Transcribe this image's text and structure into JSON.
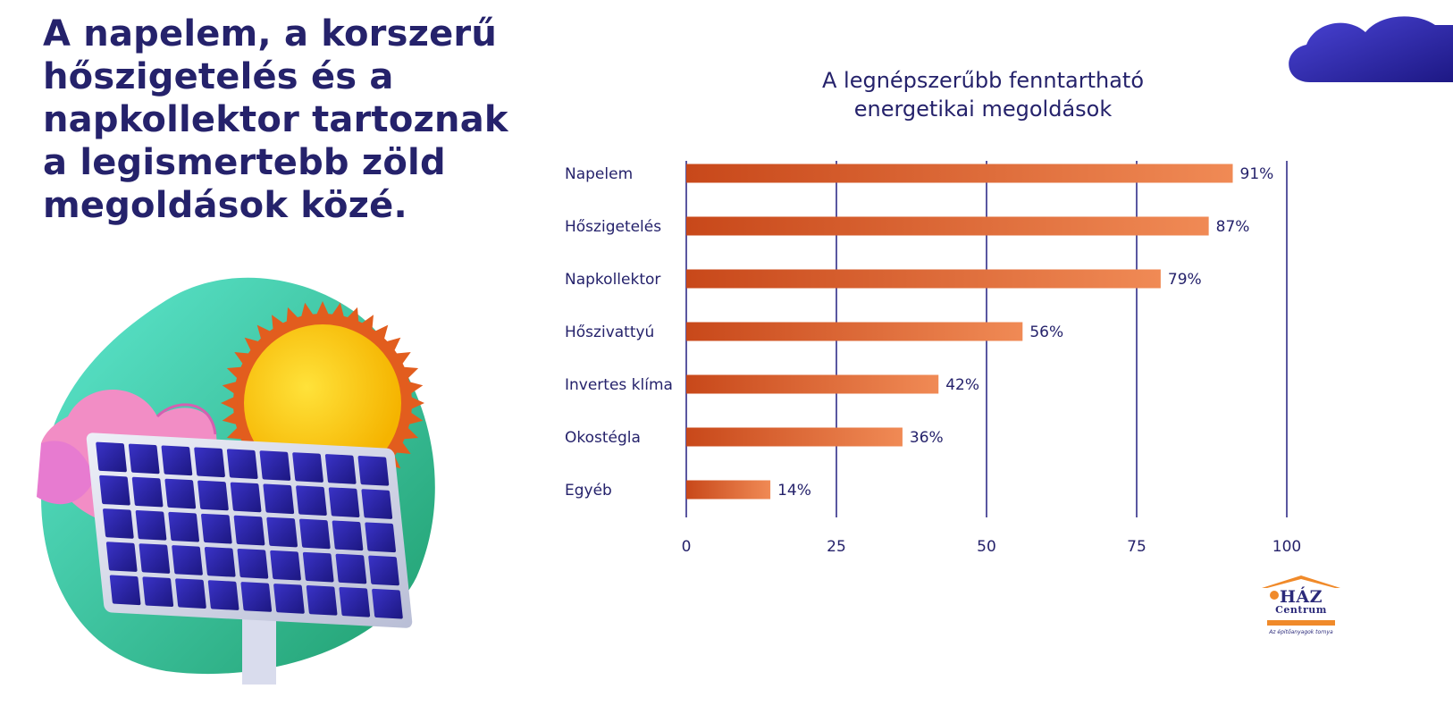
{
  "headline": {
    "lines": [
      "A napelem, a korszerű",
      "hőszigetelés és a",
      "napkollektor tartoznak",
      "a legismertebb zöld",
      "megoldások közé."
    ]
  },
  "colors": {
    "headline": "#25226b",
    "bar_start": "#c8481a",
    "bar_end": "#f08a55",
    "gridline": "#5a57a0",
    "cloud": "#2f2ab0"
  },
  "icons": [
    "solar-panel-illustration",
    "sun-icon",
    "leaf-icon",
    "cloud-shape",
    "house-roof-icon"
  ],
  "chart_data": {
    "type": "bar",
    "orientation": "horizontal",
    "title": "A legnépszerűbb fenntartható energetikai megoldások",
    "title_lines": [
      "A legnépszerűbb fenntartható",
      "energetikai megoldások"
    ],
    "categories": [
      "Napelem",
      "Hőszigetelés",
      "Napkollektor",
      "Hőszivattyú",
      "Invertes klíma",
      "Okostégla",
      "Egyéb"
    ],
    "values": [
      91,
      87,
      79,
      56,
      42,
      36,
      14
    ],
    "value_labels": [
      "91%",
      "87%",
      "79%",
      "56%",
      "42%",
      "36%",
      "14%"
    ],
    "xlim": [
      0,
      100
    ],
    "xticks": [
      "0",
      "25",
      "50",
      "75",
      "100"
    ],
    "xlabel": "",
    "ylabel": "",
    "grid": true,
    "legend": "none"
  },
  "logo": {
    "title": "HÁZ",
    "subtitle": "Centrum",
    "tagline": "Az épitőanyagok tornya"
  }
}
